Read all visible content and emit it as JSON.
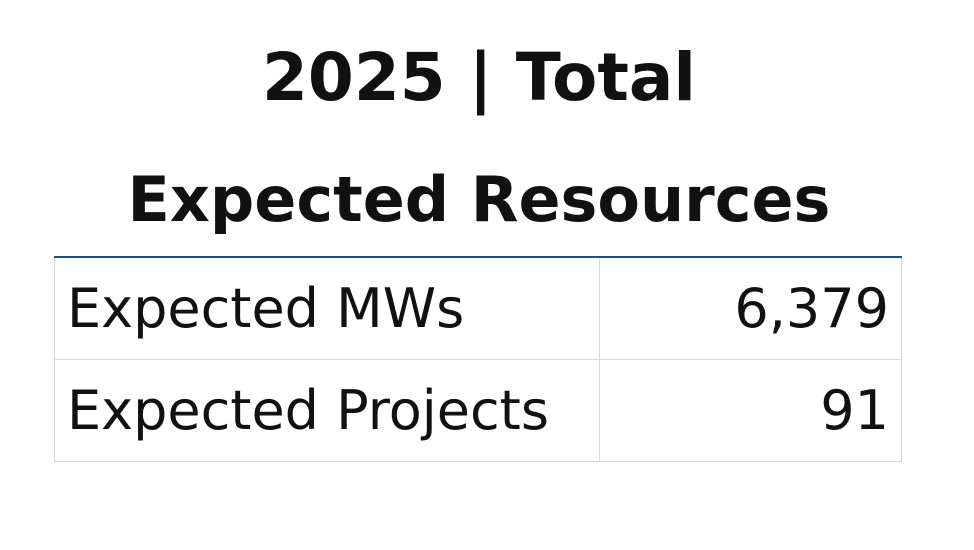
{
  "title": {
    "line1": "2025 | Total",
    "line2": "Expected Resources"
  },
  "table": {
    "rows": [
      {
        "label": "Expected MWs",
        "value": "6,379"
      },
      {
        "label": "Expected Projects",
        "value": "91"
      }
    ]
  },
  "colors": {
    "header_rule": "#1f4e79",
    "grid": "#d9d9d9",
    "text": "#111111"
  }
}
